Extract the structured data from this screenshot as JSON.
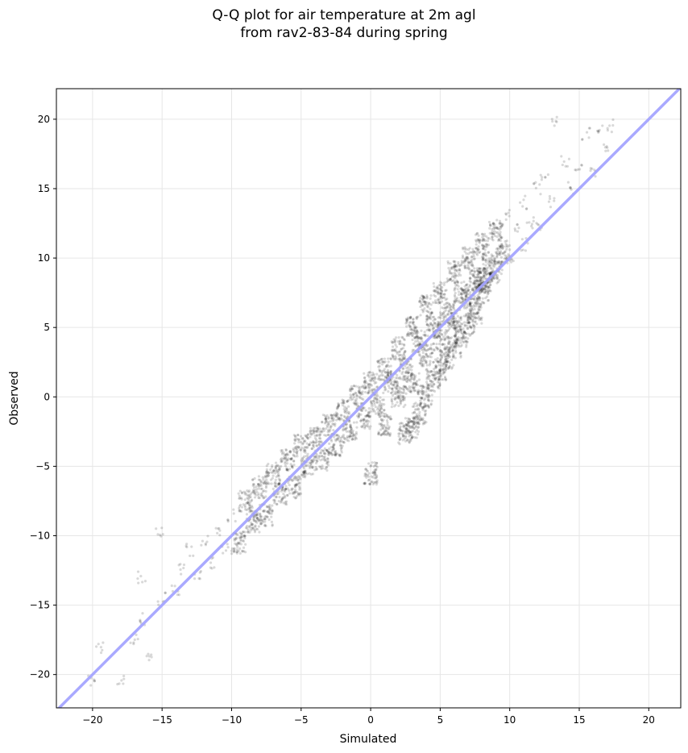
{
  "chart_data": {
    "type": "scatter",
    "title": "Q-Q plot for air temperature at 2m agl",
    "subtitle": "from rav2-83-84 during spring",
    "xlabel": "Simulated",
    "ylabel": "Observed",
    "xlim": [
      -22.6,
      22.3
    ],
    "ylim": [
      -22.4,
      22.2
    ],
    "xticks": [
      -20,
      -15,
      -10,
      -5,
      0,
      5,
      10,
      15,
      20
    ],
    "yticks": [
      -20,
      -15,
      -10,
      -5,
      0,
      5,
      10,
      15,
      20
    ],
    "grid": true,
    "reference_line": {
      "label": "1:1 line",
      "color": "#a0a0ff"
    },
    "point_color": "#000000",
    "series": [
      {
        "name": "quantiles",
        "points": [
          [
            -20,
            -20.5
          ],
          [
            -19.5,
            -18
          ],
          [
            -18,
            -20.5
          ],
          [
            -17,
            -17.5
          ],
          [
            -16.5,
            -16
          ],
          [
            -16,
            -18.7
          ],
          [
            -15.2,
            -9.8
          ],
          [
            -16.5,
            -13
          ],
          [
            -15,
            -14.5
          ],
          [
            -14,
            -14
          ],
          [
            -13.5,
            -12.5
          ],
          [
            -13,
            -11
          ],
          [
            -12.5,
            -13
          ],
          [
            -12,
            -10.5
          ],
          [
            -11.5,
            -12
          ],
          [
            -11,
            -9.5
          ],
          [
            -10.5,
            -11
          ],
          [
            -10,
            -8.5
          ],
          [
            -9.5,
            -10.5
          ],
          [
            -9,
            -7.5
          ],
          [
            -8.5,
            -9
          ],
          [
            -8,
            -6.5
          ],
          [
            -7.5,
            -8.5
          ],
          [
            -7,
            -5.5
          ],
          [
            -6.5,
            -7
          ],
          [
            -6,
            -4.5
          ],
          [
            -5.5,
            -6.5
          ],
          [
            -5,
            -3.5
          ],
          [
            -4.5,
            -5
          ],
          [
            -4,
            -3
          ],
          [
            -3.5,
            -4.5
          ],
          [
            -3,
            -2
          ],
          [
            -2.5,
            -3.5
          ],
          [
            -2,
            -1
          ],
          [
            -1.5,
            -2.5
          ],
          [
            -1,
            0
          ],
          [
            -0.5,
            -1.5
          ],
          [
            0,
            1
          ],
          [
            0,
            -5.5
          ],
          [
            0.5,
            -0.5
          ],
          [
            1,
            2
          ],
          [
            1,
            -2
          ],
          [
            1.5,
            1
          ],
          [
            2,
            3.5
          ],
          [
            2,
            0
          ],
          [
            2.5,
            2
          ],
          [
            3,
            5
          ],
          [
            3,
            1
          ],
          [
            3.5,
            4
          ],
          [
            4,
            6.5
          ],
          [
            4,
            3
          ],
          [
            4.5,
            5
          ],
          [
            5,
            7.5
          ],
          [
            5,
            4
          ],
          [
            5.5,
            6
          ],
          [
            6,
            9
          ],
          [
            6,
            5.5
          ],
          [
            6.5,
            7.5
          ],
          [
            7,
            10
          ],
          [
            7,
            7
          ],
          [
            7.5,
            8.5
          ],
          [
            8,
            11
          ],
          [
            8,
            8.5
          ],
          [
            8.5,
            9.5
          ],
          [
            9,
            12
          ],
          [
            9,
            9
          ],
          [
            9.5,
            10.5
          ],
          [
            10,
            13
          ],
          [
            10,
            10
          ],
          [
            10.5,
            12
          ],
          [
            11,
            14
          ],
          [
            11,
            11
          ],
          [
            11.5,
            12.5
          ],
          [
            12,
            15
          ],
          [
            12,
            12.5
          ],
          [
            12.5,
            16
          ],
          [
            13,
            14
          ],
          [
            13.2,
            20
          ],
          [
            14,
            17
          ],
          [
            14.5,
            15
          ],
          [
            15,
            16.5
          ],
          [
            15.5,
            19
          ],
          [
            16,
            16
          ],
          [
            16.5,
            19.2
          ],
          [
            17,
            18
          ],
          [
            17.3,
            19.5
          ],
          [
            2.5,
            -2.6
          ],
          [
            3,
            -2.2
          ],
          [
            3.5,
            -1.2
          ],
          [
            4,
            0
          ],
          [
            4.5,
            1.2
          ],
          [
            5,
            2
          ],
          [
            5.5,
            2.8
          ],
          [
            6,
            3.6
          ],
          [
            6.5,
            4.4
          ],
          [
            7,
            5.2
          ],
          [
            7.5,
            6
          ],
          [
            8,
            7.5
          ],
          [
            8.2,
            8.3
          ]
        ]
      }
    ]
  }
}
